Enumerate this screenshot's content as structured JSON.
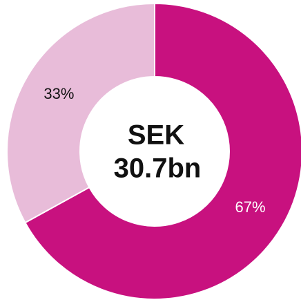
{
  "chart_data": {
    "type": "donut",
    "values": [
      67,
      33
    ],
    "value_labels": [
      "67%",
      "33%"
    ],
    "colors": [
      "#c8117f",
      "#e8bcd9"
    ],
    "label_colors": [
      "#ffffff",
      "#111111"
    ],
    "center_text": [
      "SEK",
      "30.7bn"
    ]
  }
}
